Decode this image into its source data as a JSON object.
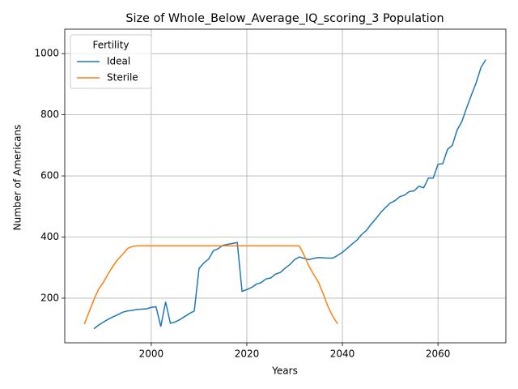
{
  "chart_data": {
    "type": "line",
    "title": "Size of Whole_Below_Average_IQ_scoring_3 Population",
    "xlabel": "Years",
    "ylabel": "Number of Americans",
    "x": [
      1986,
      1987,
      1988,
      1989,
      1990,
      1991,
      1992,
      1993,
      1994,
      1995,
      1996,
      1997,
      1998,
      1999,
      2000,
      2001,
      2002,
      2003,
      2004,
      2005,
      2006,
      2007,
      2008,
      2009,
      2010,
      2011,
      2012,
      2013,
      2014,
      2015,
      2016,
      2017,
      2018,
      2019,
      2020,
      2021,
      2022,
      2023,
      2024,
      2025,
      2026,
      2027,
      2028,
      2029,
      2030,
      2031,
      2032,
      2033,
      2034,
      2035,
      2036,
      2037,
      2038,
      2039,
      2040,
      2041,
      2042,
      2043,
      2044,
      2045,
      2046,
      2047,
      2048,
      2049,
      2050,
      2051,
      2052,
      2053,
      2054,
      2055,
      2056,
      2057,
      2058,
      2059,
      2060,
      2061,
      2062,
      2063,
      2064,
      2065,
      2066,
      2067,
      2068,
      2069,
      2070
    ],
    "series": [
      {
        "name": "Ideal",
        "color": "#1f77b4",
        "values": [
          null,
          null,
          100,
          112,
          122,
          131,
          139,
          146,
          154,
          158,
          160,
          163,
          164,
          165,
          170,
          172,
          107,
          188,
          118,
          122,
          130,
          140,
          150,
          158,
          297,
          315,
          328,
          355,
          362,
          373,
          376,
          379,
          382,
          222,
          228,
          235,
          246,
          251,
          263,
          266,
          279,
          284,
          298,
          310,
          326,
          335,
          330,
          326,
          330,
          333,
          332,
          331,
          331,
          340,
          350,
          363,
          377,
          389,
          408,
          421,
          442,
          460,
          480,
          496,
          511,
          519,
          532,
          537,
          549,
          551,
          566,
          561,
          593,
          593,
          638,
          640,
          687,
          700,
          750,
          778,
          823,
          865,
          905,
          955,
          980
        ]
      },
      {
        "name": "Sterile",
        "color": "#ff7f0e",
        "values": [
          115,
          155,
          195,
          230,
          252,
          280,
          305,
          327,
          343,
          362,
          369,
          371,
          371,
          371,
          371,
          371,
          371,
          371,
          371,
          371,
          371,
          371,
          371,
          371,
          371,
          371,
          371,
          371,
          371,
          371,
          371,
          371,
          371,
          371,
          371,
          371,
          371,
          371,
          371,
          371,
          371,
          371,
          371,
          371,
          371,
          371,
          340,
          305,
          277,
          252,
          213,
          172,
          140,
          116,
          null,
          null,
          null,
          null,
          null,
          null,
          null,
          null,
          null,
          null,
          null,
          null,
          null,
          null,
          null,
          null,
          null,
          null,
          null,
          null,
          null,
          null,
          null,
          null,
          null,
          null,
          null,
          null,
          null,
          null,
          null
        ]
      }
    ],
    "legend_title": "Fertility",
    "legend": "upper left",
    "xlim": [
      1981.9,
      2074.2
    ],
    "xticks": [
      2000,
      2020,
      2040,
      2060
    ],
    "ylim": [
      54,
      1080
    ],
    "yticks": [
      200,
      400,
      600,
      800,
      1000
    ],
    "grid": true
  }
}
